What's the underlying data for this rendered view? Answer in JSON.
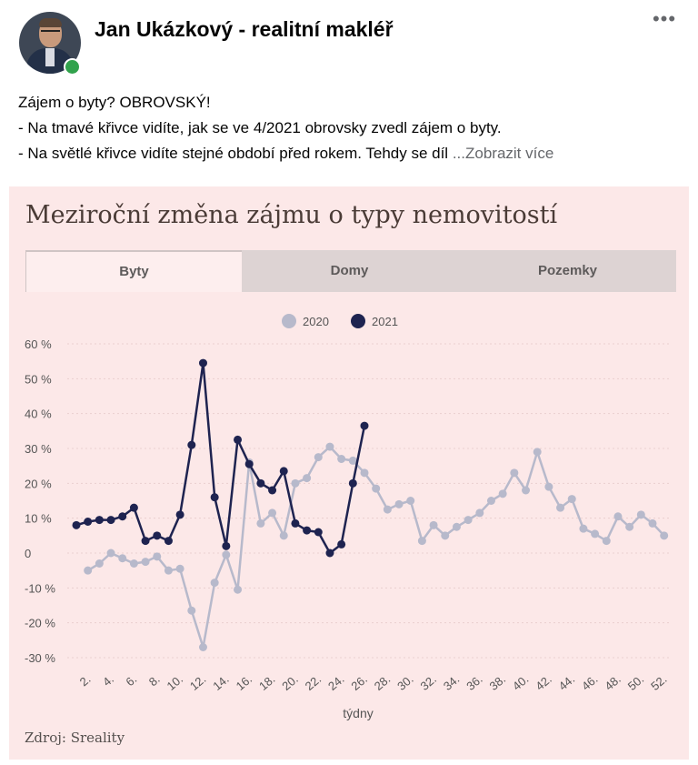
{
  "post": {
    "author": "Jan Ukázkový - realitní makléř",
    "more_menu": "•••",
    "lines": [
      "Zájem o byty? OBROVSKÝ!",
      "- Na tmavé křivce vidíte, jak se ve 4/2021 obrovsky zvedl zájem o byty.",
      "- Na světlé křivce vidíte stejné období před rokem. Tehdy se díl"
    ],
    "see_more": "...Zobrazit více"
  },
  "chart_card": {
    "title": "Meziroční změna zájmu o typy nemovitostí",
    "tabs": [
      "Byty",
      "Domy",
      "Pozemky"
    ],
    "active_tab": 0,
    "source": "Zdroj: Sreality"
  },
  "colors": {
    "series_2020": "#b7b9cb",
    "series_2021": "#1e2350",
    "card_bg": "#fce8e8",
    "online": "#31a24c"
  },
  "chart_data": {
    "type": "line",
    "title": "Meziroční změna zájmu o typy nemovitostí",
    "xlabel": "týdny",
    "ylabel": "",
    "ylim": [
      -30,
      60
    ],
    "ytick_labels": [
      "60 %",
      "50 %",
      "40 %",
      "30 %",
      "20 %",
      "10 %",
      "0",
      "-10 %",
      "-20 %",
      "-30 %"
    ],
    "ytick_values": [
      60,
      50,
      40,
      30,
      20,
      10,
      0,
      -10,
      -20,
      -30
    ],
    "xtick_labels": [
      "2.",
      "4.",
      "6.",
      "8.",
      "10.",
      "12.",
      "14.",
      "16.",
      "18.",
      "20.",
      "22.",
      "24.",
      "26.",
      "28.",
      "30.",
      "32.",
      "34.",
      "36.",
      "38.",
      "40.",
      "42.",
      "44.",
      "46.",
      "48.",
      "50.",
      "52."
    ],
    "legend_position": "top-center",
    "grid": true,
    "series": [
      {
        "name": "2020",
        "x": [
          2,
          3,
          4,
          5,
          6,
          7,
          8,
          9,
          10,
          11,
          12,
          13,
          14,
          15,
          16,
          17,
          18,
          19,
          20,
          21,
          22,
          23,
          24,
          25,
          26,
          27,
          28,
          29,
          30,
          31,
          32,
          33,
          34,
          35,
          36,
          37,
          38,
          39,
          40,
          41,
          42,
          43,
          44,
          45,
          46,
          47,
          48,
          49,
          50,
          51,
          52
        ],
        "values": [
          -5,
          -3,
          0,
          -1.5,
          -3,
          -2.5,
          -1,
          -5,
          -4.5,
          -16.5,
          -27,
          -8.5,
          -0.5,
          -10.5,
          26,
          8.5,
          11.5,
          5,
          20,
          21.5,
          27.5,
          30.5,
          27,
          26.5,
          23,
          18.5,
          12.5,
          14,
          15,
          3.5,
          8,
          5,
          7.5,
          9.5,
          11.5,
          15,
          17,
          23,
          18,
          29,
          19,
          13,
          15.5,
          7,
          5.5,
          3.5,
          10.5,
          7.5,
          11,
          8.5,
          5
        ]
      },
      {
        "name": "2021",
        "x": [
          1,
          2,
          3,
          4,
          5,
          6,
          7,
          8,
          9,
          10,
          11,
          12,
          13,
          14,
          15,
          16,
          17,
          18,
          19,
          20,
          21,
          22,
          23,
          24,
          25,
          26
        ],
        "values": [
          8,
          9,
          9.5,
          9.5,
          10.5,
          13,
          3.5,
          5,
          3.5,
          11,
          31,
          54.5,
          16,
          2,
          32.5,
          25.5,
          20,
          18,
          23.5,
          8.5,
          6.5,
          6,
          0,
          2.5,
          20,
          36.5
        ]
      }
    ]
  }
}
